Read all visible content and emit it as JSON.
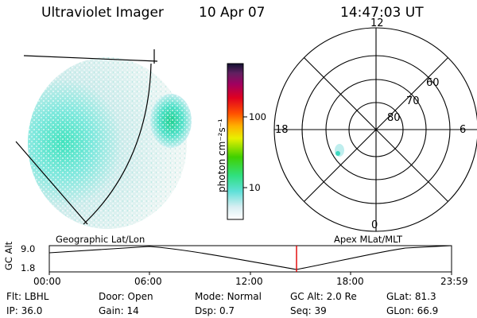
{
  "header": {
    "instrument": "Ultraviolet Imager",
    "date": "10 Apr 07",
    "time": "14:47:03 UT"
  },
  "colorbar": {
    "unit_label": "photon cm⁻²s⁻¹",
    "ticks": [
      "100",
      "10"
    ]
  },
  "polar_plot": {
    "mlt_labels": {
      "top": "12",
      "left": "18",
      "right": "6",
      "bottom": "0"
    },
    "lat_labels": [
      "60",
      "70",
      "80"
    ]
  },
  "panel_labels": {
    "geographic": "Geographic Lat/Lon",
    "apex": "Apex MLat/MLT"
  },
  "altitude_plot": {
    "axis_label": "GC Alt",
    "y_ticks": [
      "9.0",
      "1.8"
    ],
    "x_ticks": [
      "00:00",
      "06:00",
      "12:00",
      "18:00",
      "23:59"
    ],
    "marker_color": "#e00000"
  },
  "footer": {
    "row1": [
      {
        "key": "Flt:",
        "value": "LBHL"
      },
      {
        "key": "Door:",
        "value": "Open"
      },
      {
        "key": "Mode:",
        "value": "Normal"
      },
      {
        "key": "GC Alt:",
        "value": "2.0 Re"
      },
      {
        "key": "GLat:",
        "value": "81.3"
      }
    ],
    "row2": [
      {
        "key": "IP:",
        "value": "36.0"
      },
      {
        "key": "Gain:",
        "value": "14"
      },
      {
        "key": "Dsp:",
        "value": "0.7"
      },
      {
        "key": "Seq:",
        "value": "39"
      },
      {
        "key": "GLon:",
        "value": "66.9"
      }
    ]
  }
}
